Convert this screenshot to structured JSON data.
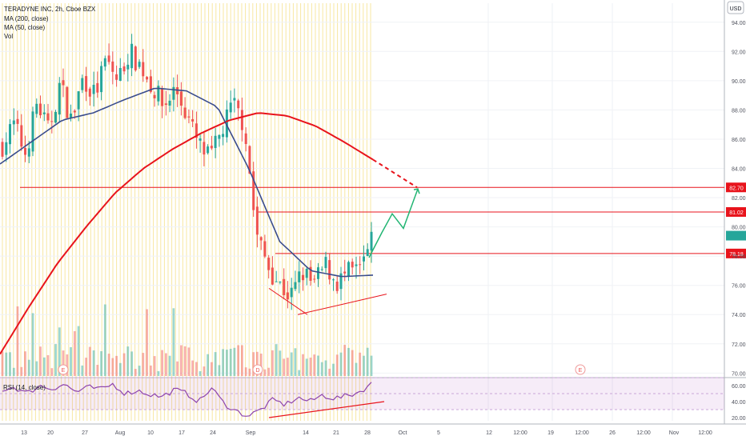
{
  "header": {
    "symbol_line": "TERADYNE INC, 2h, Cboe BZX",
    "ma200_label": "MA (200, close)",
    "ma50_label": "MA (50, close)",
    "vol_label": "Vol",
    "currency": "USD",
    "rsi_label": "RSI (14, close)"
  },
  "colors": {
    "bull": "#26a69a",
    "bear": "#ef5350",
    "ma200": "#e8141c",
    "ma50": "#3a4c8c",
    "rsi": "#8e44ad",
    "level": "#e8141c",
    "projection": "#22b573",
    "session_grid": "#f7e7a2",
    "current_price_tag": "#26a69a"
  },
  "chart_data": [
    {
      "type": "candlestick",
      "title": "TERADYNE INC, 2h, Cboe BZX",
      "y_unit": "USD",
      "ylim": [
        69.8,
        95.3
      ],
      "y_ticks": [
        70,
        72,
        74,
        76,
        78,
        80,
        82,
        84,
        86,
        88,
        90,
        92,
        94
      ],
      "y_tick_labels": [
        "70.00",
        "72.00",
        "74.00",
        "76.00",
        "78.00",
        "80.00",
        "82.00",
        "84.00",
        "86.00",
        "88.00",
        "90.00",
        "92.00",
        "94.00"
      ],
      "x_tick_labels": [
        "13",
        "20",
        "27",
        "Aug",
        "10",
        "17",
        "24",
        "Sep",
        "14",
        "21",
        "28",
        "Oct",
        "5",
        "12",
        "12:00",
        "19",
        "12:00",
        "26",
        "12:00",
        "Nov",
        "12:00"
      ],
      "series": [
        {
          "name": "MA (200, close)",
          "type": "line",
          "values": [
            71.3,
            74.5,
            77.5,
            80.0,
            82.3,
            84.0,
            85.3,
            86.4,
            87.3,
            87.8,
            87.6,
            86.9,
            85.8,
            84.6
          ]
        },
        {
          "name": "MA (50, close)",
          "type": "line",
          "values": [
            84.3,
            85.8,
            87.3,
            87.8,
            88.7,
            89.5,
            89.3,
            88.2,
            84.0,
            79.0,
            77.0,
            76.6,
            76.7
          ]
        },
        {
          "name": "Vol",
          "type": "bar",
          "values": []
        }
      ],
      "levels": [
        {
          "label": "82.70",
          "value": 82.7
        },
        {
          "label": "81.02",
          "value": 81.02
        },
        {
          "label": "78.18",
          "value": 78.18
        }
      ],
      "current_price": 79.4,
      "projection_path": [
        77.9,
        79.6,
        80.9,
        79.9,
        82.6
      ],
      "earnings_markers": [
        "E",
        "D",
        "E"
      ],
      "grid": true
    },
    {
      "type": "line",
      "title": "RSI (14, close)",
      "ylim": [
        16,
        68
      ],
      "y_ticks": [
        20,
        40,
        60
      ],
      "y_tick_labels": [
        "20.00",
        "40.00",
        "60.00"
      ],
      "band": [
        30,
        70
      ],
      "series": [
        {
          "name": "RSI (14, close)",
          "values": []
        }
      ]
    }
  ]
}
